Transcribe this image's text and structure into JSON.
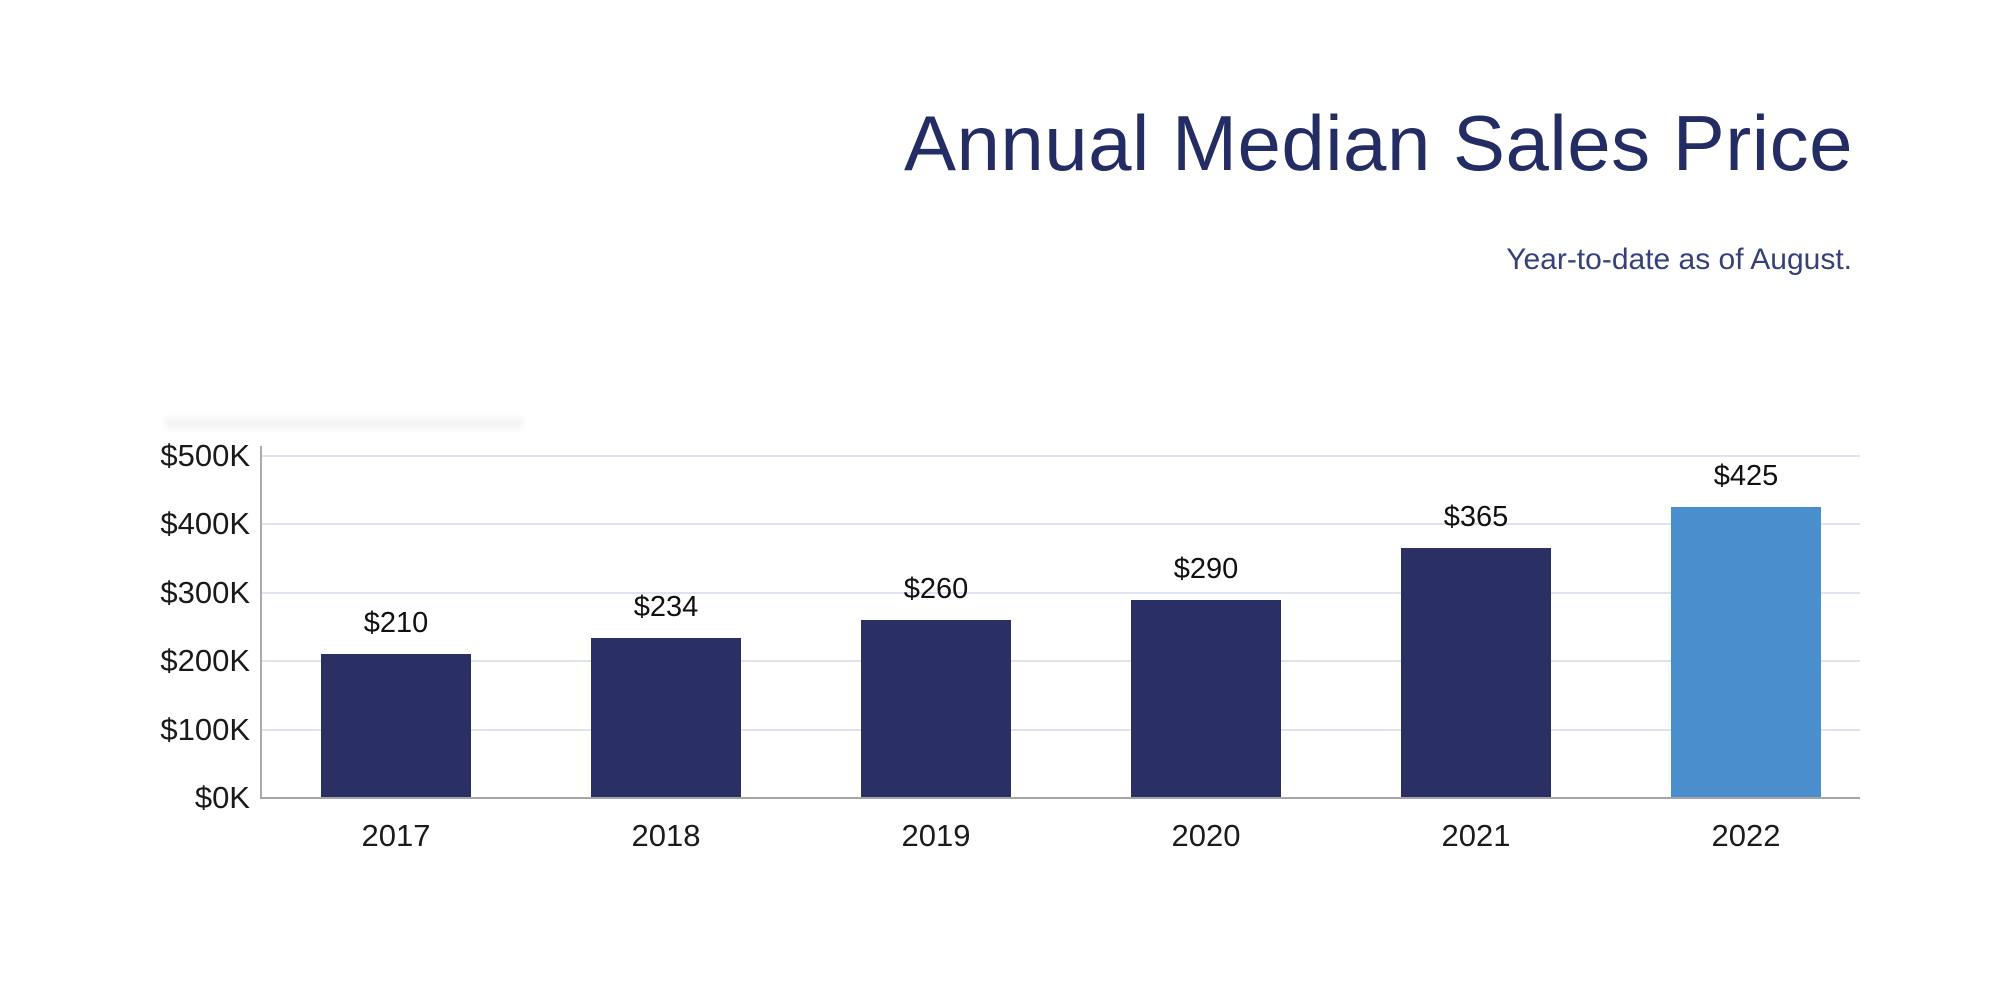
{
  "header": {
    "title": "Annual Median Sales Price",
    "subtitle": "Year-to-date as of August."
  },
  "chart_data": {
    "type": "bar",
    "title": "Annual Median Sales Price",
    "subtitle": "Year-to-date as of August.",
    "categories": [
      "2017",
      "2018",
      "2019",
      "2020",
      "2021",
      "2022"
    ],
    "values": [
      210,
      234,
      260,
      290,
      365,
      425
    ],
    "bar_labels": [
      "$210",
      "$234",
      "$260",
      "$290",
      "$365",
      "$425"
    ],
    "unit": "thousands of dollars",
    "ytick_labels": [
      "$0K",
      "$100K",
      "$200K",
      "$300K",
      "$400K",
      "$500K"
    ],
    "ytick_values": [
      0,
      100,
      200,
      300,
      400,
      500
    ],
    "ylim": [
      0,
      500
    ],
    "grid": true,
    "legend": false,
    "highlight_index": 5,
    "colors": {
      "bar_default": "#2a3064",
      "bar_highlight": "#4a8ecd",
      "gridline": "#dde4f0",
      "y_axis_line": "#a9abb0",
      "x_axis_line": "#a5a5a5",
      "title": "#232c63",
      "subtitle": "#364179",
      "tick_label": "#1a1a1a"
    }
  }
}
